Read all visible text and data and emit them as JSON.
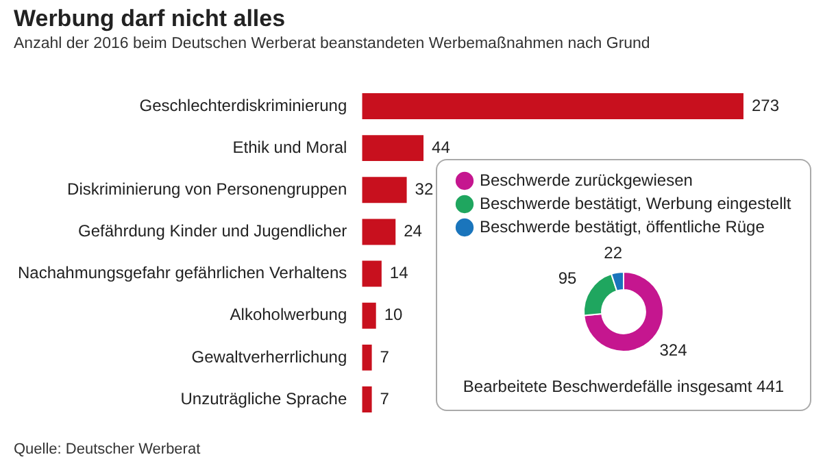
{
  "chart_data": [
    {
      "type": "bar",
      "orientation": "horizontal",
      "title": "Werbung darf nicht alles",
      "subtitle": "Anzahl der 2016 beim Deutschen Werberat beanstandeten Werbemaßnahmen nach Grund",
      "categories": [
        "Geschlechterdiskriminierung",
        "Ethik und Moral",
        "Diskriminierung von Personengruppen",
        "Gefährdung Kinder und Jugendlicher",
        "Nachahmungsgefahr gefährlichen Verhaltens",
        "Alkoholwerbung",
        "Gewaltverherrlichung",
        "Unzuträgliche Sprache"
      ],
      "values": [
        273,
        44,
        32,
        24,
        14,
        10,
        7,
        7
      ],
      "color": "#c8101e",
      "data_labels": true,
      "legend": false,
      "annotations": [
        "Quelle: Deutscher Werberat"
      ]
    },
    {
      "type": "donut",
      "categories": [
        "Beschwerde zurückgewiesen",
        "Beschwerde bestätigt, Werbung eingestellt",
        "Beschwerde bestätigt, öffentliche Rüge"
      ],
      "values": [
        324,
        95,
        22
      ],
      "colors": [
        "#c5168f",
        "#1fa65f",
        "#1a75bc"
      ],
      "data_labels": true,
      "legend": "top",
      "annotations": [
        "Bearbeitete Beschwerdefälle insgesamt 441"
      ]
    }
  ]
}
